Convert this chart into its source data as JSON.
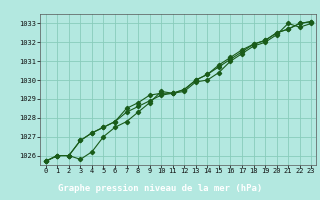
{
  "xlabel": "Graphe pression niveau de la mer (hPa)",
  "background_color": "#b3e8e0",
  "plot_bg_color": "#b3e8e0",
  "grid_color": "#88ccbb",
  "line_color": "#1a5c1a",
  "marker_color": "#1a5c1a",
  "label_bar_color": "#2a6e2a",
  "label_text_color": "#ffffff",
  "ylim": [
    1025.5,
    1033.5
  ],
  "xlim": [
    -0.5,
    23.4
  ],
  "yticks": [
    1026,
    1027,
    1028,
    1029,
    1030,
    1031,
    1032,
    1033
  ],
  "xticks": [
    0,
    1,
    2,
    3,
    4,
    5,
    6,
    7,
    8,
    9,
    10,
    11,
    12,
    13,
    14,
    15,
    16,
    17,
    18,
    19,
    20,
    21,
    22,
    23
  ],
  "series1_x": [
    0,
    1,
    2,
    3,
    4,
    5,
    6,
    7,
    8,
    9,
    10,
    11,
    12,
    13,
    14,
    15,
    16,
    17,
    18,
    19,
    20,
    21,
    22,
    23
  ],
  "series1_y": [
    1025.7,
    1026.0,
    1026.0,
    1025.8,
    1026.2,
    1027.0,
    1027.5,
    1027.8,
    1028.3,
    1028.8,
    1029.4,
    1029.3,
    1029.4,
    1029.9,
    1030.0,
    1030.4,
    1031.0,
    1031.4,
    1031.8,
    1032.0,
    1032.4,
    1033.0,
    1032.8,
    1033.0
  ],
  "series2_x": [
    0,
    1,
    2,
    3,
    4,
    5,
    6,
    7,
    8,
    9,
    10,
    11,
    12,
    13,
    14,
    15,
    16,
    17,
    18,
    19,
    20,
    21,
    22,
    23
  ],
  "series2_y": [
    1025.7,
    1026.0,
    1026.0,
    1026.8,
    1027.2,
    1027.5,
    1027.8,
    1028.5,
    1028.8,
    1029.2,
    1029.3,
    1029.3,
    1029.5,
    1030.0,
    1030.3,
    1030.8,
    1031.2,
    1031.6,
    1031.9,
    1032.1,
    1032.5,
    1032.7,
    1033.0,
    1033.1
  ],
  "series3_x": [
    0,
    1,
    2,
    3,
    4,
    5,
    6,
    7,
    8,
    9,
    10,
    11,
    12,
    13,
    14,
    15,
    16,
    17,
    18,
    19,
    20,
    21,
    22,
    23
  ],
  "series3_y": [
    1025.7,
    1026.0,
    1026.0,
    1026.8,
    1027.2,
    1027.5,
    1027.8,
    1028.3,
    1028.6,
    1028.9,
    1029.2,
    1029.3,
    1029.5,
    1030.0,
    1030.3,
    1030.7,
    1031.1,
    1031.5,
    1031.9,
    1032.1,
    1032.5,
    1032.7,
    1033.0,
    1033.1
  ]
}
